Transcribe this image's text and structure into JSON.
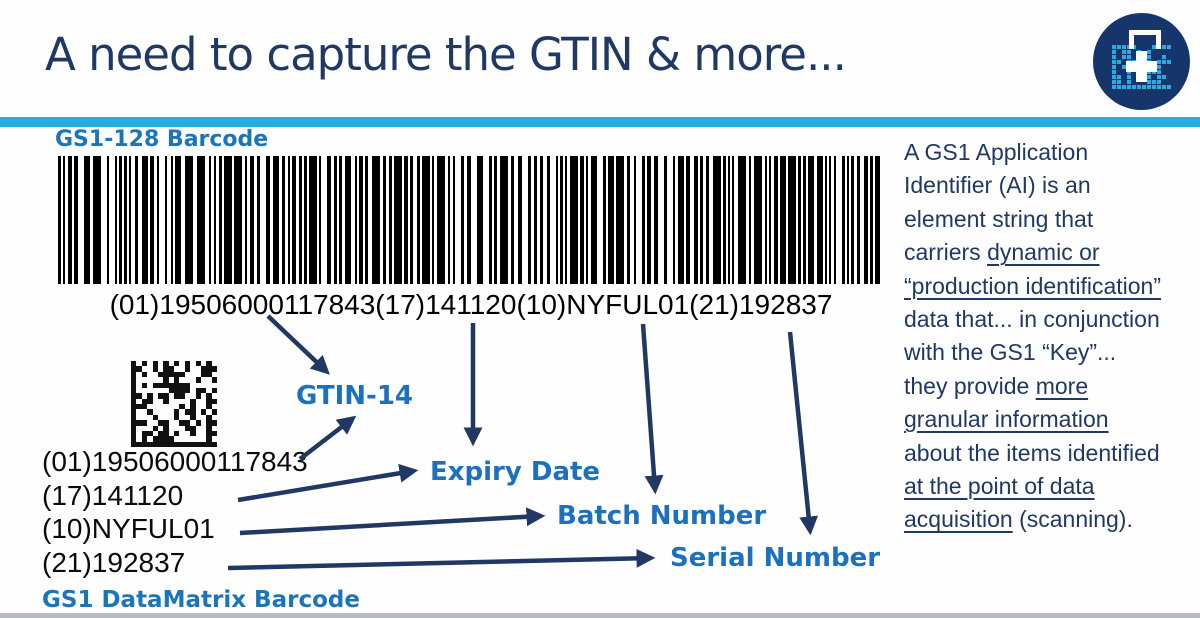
{
  "slide": {
    "title": "A need to capture the GTIN & more..."
  },
  "colors": {
    "accent_cyan": "#29abe2",
    "navy_text": "#1f3864",
    "label_blue": "#1b75bb",
    "callout_blue": "#1c70bd",
    "logo_circle_navy": "#15356b",
    "bottom_bar_gray": "#b6bcc4"
  },
  "icons": {
    "logo": "datamatrix-medical-case-icon"
  },
  "gs128": {
    "label": "GS1-128 Barcode",
    "human_readable": "(01)19506000117843(17)141120(10)NYFUL01(21)192837"
  },
  "datamatrix": {
    "label": "GS1 DataMatrix Barcode",
    "ai_lines": [
      "(01)19506000117843",
      "(17)141120",
      "(10)NYFUL01",
      "(21)192837"
    ]
  },
  "callouts": {
    "gtin": "GTIN-14",
    "expiry": "Expiry Date",
    "batch": "Batch Number",
    "serial": "Serial Number"
  },
  "sidebar": {
    "segments": [
      {
        "text": "A GS1 Application Identifier (AI) is an element string that carriers ",
        "u": false
      },
      {
        "text": "dynamic or “production identification”",
        "u": true
      },
      {
        "text": " data that... in conjunction with the GS1 “Key”... they provide ",
        "u": false
      },
      {
        "text": "more granular information",
        "u": true
      },
      {
        "text": " about the items identified ",
        "u": false
      },
      {
        "text": "at the point of data acquisition",
        "u": true
      },
      {
        "text": " (scanning).",
        "u": false
      }
    ]
  }
}
